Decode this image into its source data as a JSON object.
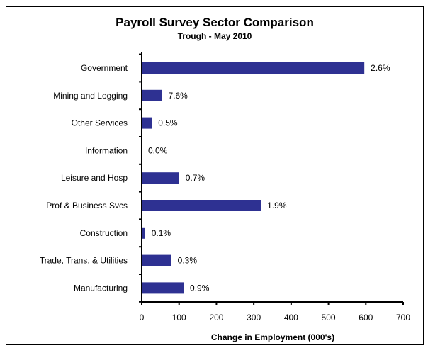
{
  "chart_data": {
    "type": "bar",
    "orientation": "horizontal",
    "title": "Payroll Survey Sector Comparison",
    "subtitle": "Trough - May 2010",
    "xlabel": "Change in Employment (000's)",
    "ylabel": "",
    "xlim": [
      0,
      700
    ],
    "xticks": [
      0,
      100,
      200,
      300,
      400,
      500,
      600,
      700
    ],
    "grid": false,
    "legend": "none",
    "bar_color": "#2e3192",
    "categories": [
      "Government",
      "Mining and Logging",
      "Other Services",
      "Information",
      "Leisure and Hosp",
      "Prof & Business Svcs",
      "Construction",
      "Trade, Trans, & Utilities",
      "Manufacturing"
    ],
    "values": [
      596,
      54,
      27,
      0,
      100,
      319,
      9,
      79,
      112
    ],
    "data_labels": [
      "2.6%",
      "7.6%",
      "0.5%",
      "0.0%",
      "0.7%",
      "1.9%",
      "0.1%",
      "0.3%",
      "0.9%"
    ]
  }
}
